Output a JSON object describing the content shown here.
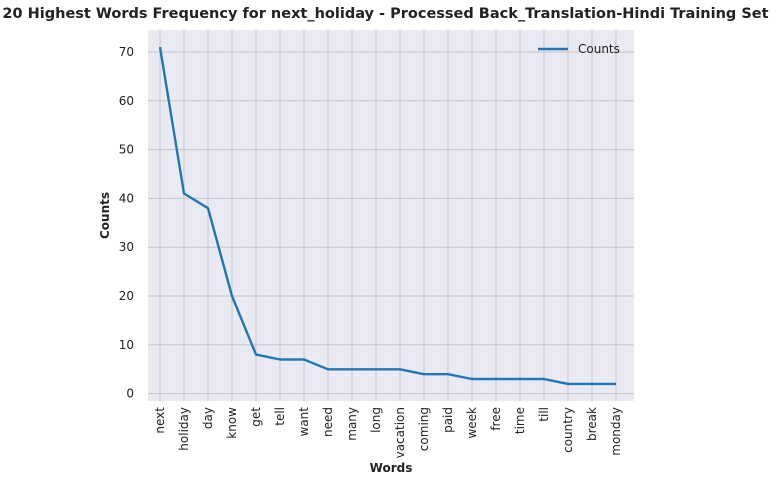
{
  "chart_data": {
    "type": "line",
    "title": "20 Highest Words Frequency for next_holiday - Processed Back_Translation-Hindi Training Set",
    "xlabel": "Words",
    "ylabel": "Counts",
    "categories": [
      "next",
      "holiday",
      "day",
      "know",
      "get",
      "tell",
      "want",
      "need",
      "many",
      "long",
      "vacation",
      "coming",
      "paid",
      "week",
      "free",
      "time",
      "till",
      "country",
      "break",
      "monday"
    ],
    "series": [
      {
        "name": "Counts",
        "values": [
          71,
          41,
          38,
          20,
          8,
          7,
          7,
          5,
          5,
          5,
          5,
          4,
          4,
          3,
          3,
          3,
          3,
          2,
          2,
          2
        ],
        "color": "#1f77b4"
      }
    ],
    "ylim": [
      -1.5,
      74.5
    ],
    "yticks": [
      0,
      10,
      20,
      30,
      40,
      50,
      60,
      70
    ],
    "grid": true,
    "legend": "top-right",
    "background": "#eaeaf2",
    "grid_color": "#c4c4c8"
  }
}
